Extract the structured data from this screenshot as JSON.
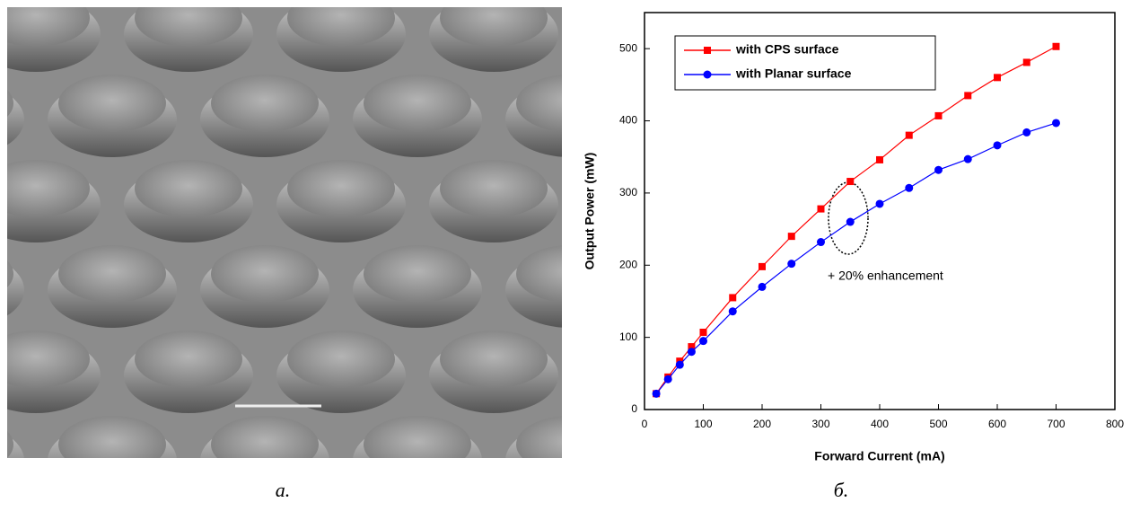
{
  "captions": [
    "а.",
    "б."
  ],
  "chart_data": {
    "type": "line",
    "xlabel": "Forward Current (mA)",
    "ylabel": "Output Power (mW)",
    "annotation": "+ 20% enhancement",
    "x": [
      20,
      40,
      60,
      80,
      100,
      150,
      200,
      250,
      300,
      350,
      400,
      450,
      500,
      550,
      600,
      650,
      700
    ],
    "series": [
      {
        "name": "with CPS surface",
        "color": "#ff0000",
        "marker": "square",
        "values": [
          22,
          45,
          67,
          87,
          107,
          155,
          198,
          240,
          278,
          316,
          346,
          380,
          407,
          435,
          460,
          481,
          503
        ]
      },
      {
        "name": "with Planar surface",
        "color": "#0000ff",
        "marker": "circle",
        "values": [
          22,
          42,
          62,
          80,
          95,
          136,
          170,
          202,
          232,
          260,
          285,
          307,
          332,
          347,
          366,
          384,
          397
        ]
      }
    ],
    "xlim": [
      0,
      800
    ],
    "xticks": [
      0,
      100,
      200,
      300,
      400,
      500,
      600,
      700,
      800
    ],
    "ylim": [
      0,
      550
    ],
    "yticks": [
      0,
      100,
      200,
      300,
      400,
      500
    ],
    "legend": "upper-left",
    "grid": false
  }
}
